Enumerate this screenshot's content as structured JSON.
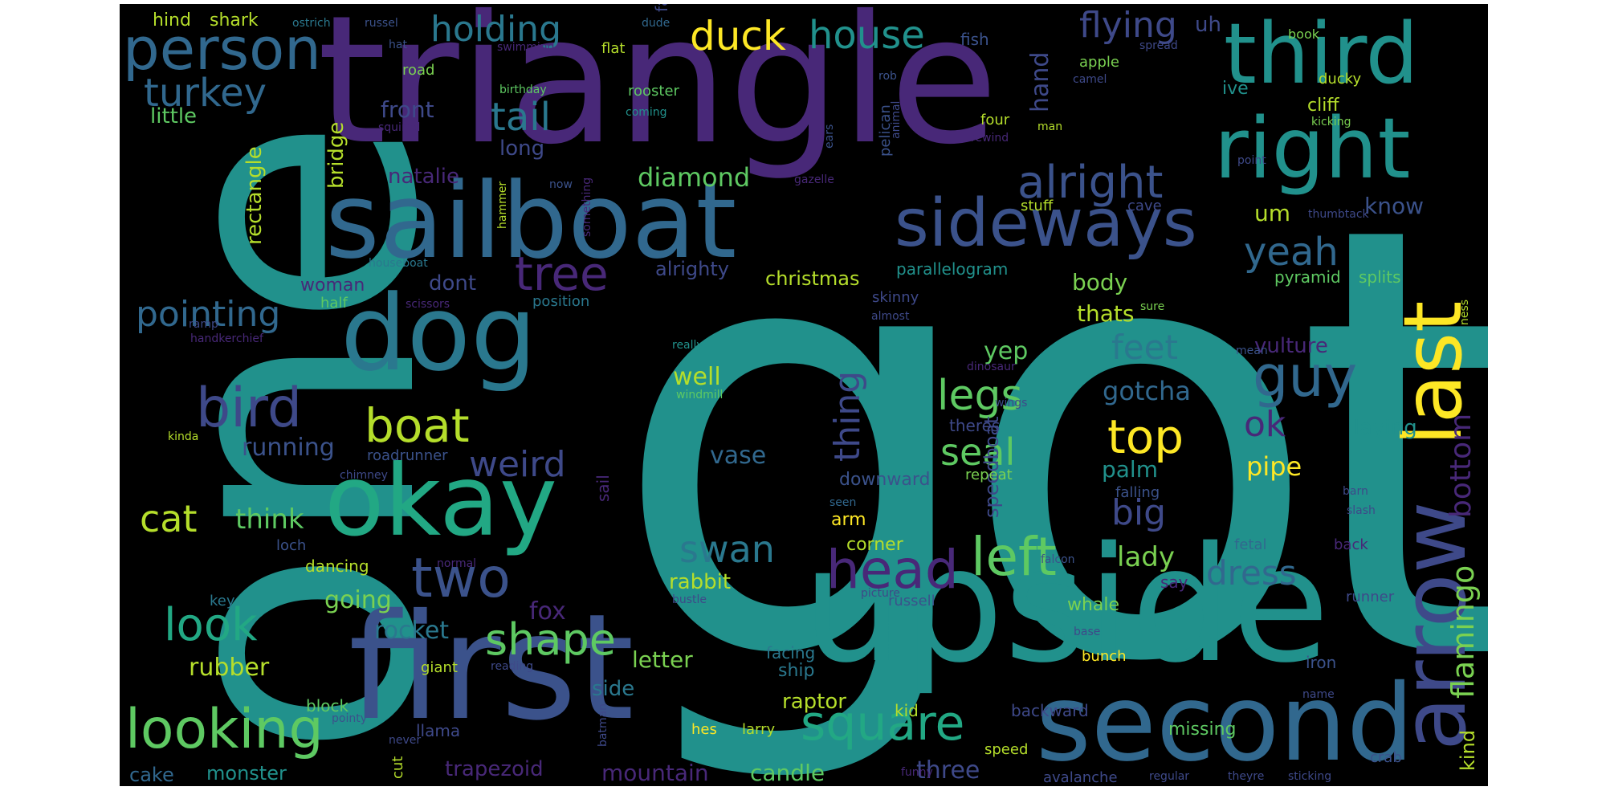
{
  "cloud": {
    "words": [
      {
        "text": "got",
        "color": "#21918c"
      },
      {
        "text": "one",
        "color": "#21918c"
      },
      {
        "text": "triangle",
        "color": "#482878"
      },
      {
        "text": "upside",
        "color": "#21918c"
      },
      {
        "text": "first",
        "color": "#3b528b"
      },
      {
        "text": "second",
        "color": "#31688e"
      },
      {
        "text": "sailboat",
        "color": "#31688e"
      },
      {
        "text": "arrow",
        "color": "#3e4989"
      },
      {
        "text": "okay",
        "color": "#22a884"
      },
      {
        "text": "dog",
        "color": "#2a788e"
      },
      {
        "text": "last",
        "color": "#fde725"
      },
      {
        "text": "third",
        "color": "#21918c"
      },
      {
        "text": "right",
        "color": "#21918c"
      },
      {
        "text": "sideways",
        "color": "#3b528b"
      },
      {
        "text": "person",
        "color": "#31688e"
      },
      {
        "text": "looking",
        "color": "#5ec962"
      },
      {
        "text": "head",
        "color": "#482878"
      },
      {
        "text": "left",
        "color": "#5ec962"
      },
      {
        "text": "square",
        "color": "#22a884"
      },
      {
        "text": "two",
        "color": "#3b528b"
      },
      {
        "text": "bird",
        "color": "#3e4989"
      },
      {
        "text": "boat",
        "color": "#b5de2b"
      },
      {
        "text": "look",
        "color": "#22a884"
      },
      {
        "text": "shape",
        "color": "#5ec962"
      },
      {
        "text": "top",
        "color": "#fde725"
      },
      {
        "text": "guy",
        "color": "#31688e"
      },
      {
        "text": "tree",
        "color": "#482878"
      },
      {
        "text": "legs",
        "color": "#5ec962"
      },
      {
        "text": "alright",
        "color": "#3b528b"
      },
      {
        "text": "yeah",
        "color": "#31688e"
      },
      {
        "text": "duck",
        "color": "#fde725"
      },
      {
        "text": "house",
        "color": "#21918c"
      },
      {
        "text": "tail",
        "color": "#2a788e"
      },
      {
        "text": "turkey",
        "color": "#31688e"
      },
      {
        "text": "holding",
        "color": "#2a788e"
      },
      {
        "text": "flying",
        "color": "#3e4989"
      },
      {
        "text": "pointing",
        "color": "#31688e"
      },
      {
        "text": "cat",
        "color": "#b5de2b"
      },
      {
        "text": "swan",
        "color": "#2a788e"
      },
      {
        "text": "seal",
        "color": "#5ec962"
      },
      {
        "text": "big",
        "color": "#3e4989"
      },
      {
        "text": "dress",
        "color": "#31688e"
      },
      {
        "text": "feet",
        "color": "#2a788e"
      },
      {
        "text": "weird",
        "color": "#3e4989"
      },
      {
        "text": "thing",
        "color": "#3e4989"
      },
      {
        "text": "ok",
        "color": "#482878"
      },
      {
        "text": "flamingo",
        "color": "#7ad151"
      },
      {
        "text": "bottom",
        "color": "#482878"
      },
      {
        "text": "kind",
        "color": "#b5de2b"
      },
      {
        "text": "diamond",
        "color": "#5ec962"
      },
      {
        "text": "running",
        "color": "#3b528b"
      },
      {
        "text": "think",
        "color": "#5ec962"
      },
      {
        "text": "gotcha",
        "color": "#31688e"
      },
      {
        "text": "lady",
        "color": "#7ad151"
      },
      {
        "text": "yep",
        "color": "#5ec962"
      },
      {
        "text": "well",
        "color": "#b5de2b"
      },
      {
        "text": "fox",
        "color": "#482878"
      },
      {
        "text": "rocket",
        "color": "#2a788e"
      },
      {
        "text": "going",
        "color": "#7ad151"
      },
      {
        "text": "rubber",
        "color": "#b5de2b"
      },
      {
        "text": "letter",
        "color": "#7ad151"
      },
      {
        "text": "side",
        "color": "#2a788e"
      },
      {
        "text": "raptor",
        "color": "#b5de2b"
      },
      {
        "text": "mountain",
        "color": "#482878"
      },
      {
        "text": "candle",
        "color": "#5ec962"
      },
      {
        "text": "three",
        "color": "#3e4989"
      },
      {
        "text": "trapezoid",
        "color": "#482878"
      },
      {
        "text": "monster",
        "color": "#21918c"
      },
      {
        "text": "cake",
        "color": "#31688e"
      },
      {
        "text": "rabbit",
        "color": "#b5de2b"
      },
      {
        "text": "vase",
        "color": "#31688e"
      },
      {
        "text": "palm",
        "color": "#21918c"
      },
      {
        "text": "pipe",
        "color": "#fde725"
      },
      {
        "text": "christmas",
        "color": "#b5de2b"
      },
      {
        "text": "parallelogram",
        "color": "#21918c"
      },
      {
        "text": "alrighty",
        "color": "#3e4989"
      },
      {
        "text": "dont",
        "color": "#3e4989"
      },
      {
        "text": "woman",
        "color": "#482878"
      },
      {
        "text": "natalie",
        "color": "#482878"
      },
      {
        "text": "front",
        "color": "#3e4989"
      },
      {
        "text": "long",
        "color": "#3e4989"
      },
      {
        "text": "bridge",
        "color": "#b5de2b"
      },
      {
        "text": "rectangle",
        "color": "#b5de2b"
      },
      {
        "text": "little",
        "color": "#5ec962"
      },
      {
        "text": "hand",
        "color": "#3e4989"
      },
      {
        "text": "um",
        "color": "#b5de2b"
      },
      {
        "text": "know",
        "color": "#3b528b"
      },
      {
        "text": "body",
        "color": "#7ad151"
      },
      {
        "text": "thats",
        "color": "#b5de2b"
      },
      {
        "text": "vulture",
        "color": "#482878"
      },
      {
        "text": "laying",
        "color": "#21918c"
      },
      {
        "text": "speedboat",
        "color": "#3e4989"
      },
      {
        "text": "downward",
        "color": "#3b528b"
      },
      {
        "text": "arm",
        "color": "#fde725"
      },
      {
        "text": "corner",
        "color": "#b5de2b"
      },
      {
        "text": "whale",
        "color": "#7ad151"
      },
      {
        "text": "ship",
        "color": "#2a788e"
      },
      {
        "text": "hind",
        "color": "#b5de2b"
      },
      {
        "text": "shark",
        "color": "#b5de2b"
      },
      {
        "text": "ostrich",
        "color": "#2a788e"
      },
      {
        "text": "russel",
        "color": "#3b528b"
      },
      {
        "text": "hat",
        "color": "#3b528b"
      },
      {
        "text": "swimming",
        "color": "#482878"
      },
      {
        "text": "fat",
        "color": "#3e4989"
      },
      {
        "text": "flat",
        "color": "#b5de2b"
      },
      {
        "text": "dude",
        "color": "#31688e"
      },
      {
        "text": "fish",
        "color": "#3b528b"
      },
      {
        "text": "road",
        "color": "#7ad151"
      },
      {
        "text": "birthday",
        "color": "#5ec962"
      },
      {
        "text": "rooster",
        "color": "#5ec962"
      },
      {
        "text": "coming",
        "color": "#21918c"
      },
      {
        "text": "squirrel",
        "color": "#482878"
      },
      {
        "text": "apple",
        "color": "#7ad151"
      },
      {
        "text": "camel",
        "color": "#3e4989"
      },
      {
        "text": "book",
        "color": "#7ad151"
      },
      {
        "text": "spread",
        "color": "#3e4989"
      },
      {
        "text": "uh",
        "color": "#3e4989"
      },
      {
        "text": "cliff",
        "color": "#b5de2b"
      },
      {
        "text": "ducky",
        "color": "#b5de2b"
      },
      {
        "text": "kicking",
        "color": "#7ad151"
      },
      {
        "text": "ive",
        "color": "#21918c"
      },
      {
        "text": "man",
        "color": "#b5de2b"
      },
      {
        "text": "rob",
        "color": "#3b528b"
      },
      {
        "text": "pelican",
        "color": "#3b528b"
      },
      {
        "text": "animal",
        "color": "#3e4989"
      },
      {
        "text": "four",
        "color": "#b5de2b"
      },
      {
        "text": "rewind",
        "color": "#482878"
      },
      {
        "text": "ears",
        "color": "#3b528b"
      },
      {
        "text": "point",
        "color": "#3e4989"
      },
      {
        "text": "gazelle",
        "color": "#482878"
      },
      {
        "text": "hammer",
        "color": "#b5de2b"
      },
      {
        "text": "now",
        "color": "#3b528b"
      },
      {
        "text": "something",
        "color": "#482878"
      },
      {
        "text": "stuff",
        "color": "#b5de2b"
      },
      {
        "text": "cave",
        "color": "#3e4989"
      },
      {
        "text": "thumbtack",
        "color": "#3e4989"
      },
      {
        "text": "pyramid",
        "color": "#5ec962"
      },
      {
        "text": "splits",
        "color": "#5ec962"
      },
      {
        "text": "sure",
        "color": "#7ad151"
      },
      {
        "text": "ness",
        "color": "#b5de2b"
      },
      {
        "text": "houseboat",
        "color": "#2a788e"
      },
      {
        "text": "position",
        "color": "#2a788e"
      },
      {
        "text": "half",
        "color": "#5ec962"
      },
      {
        "text": "scissors",
        "color": "#482878"
      },
      {
        "text": "skinny",
        "color": "#3e4989"
      },
      {
        "text": "handkerchief",
        "color": "#482878"
      },
      {
        "text": "almost",
        "color": "#3e4989"
      },
      {
        "text": "ramp",
        "color": "#3e4989"
      },
      {
        "text": "really",
        "color": "#21918c"
      },
      {
        "text": "mean",
        "color": "#3b528b"
      },
      {
        "text": "dinosaur",
        "color": "#482878"
      },
      {
        "text": "windmill",
        "color": "#5ec962"
      },
      {
        "text": "wings",
        "color": "#3e4989"
      },
      {
        "text": "theres",
        "color": "#3e4989"
      },
      {
        "text": "kinda",
        "color": "#b5de2b"
      },
      {
        "text": "roadrunner",
        "color": "#3b528b"
      },
      {
        "text": "chimney",
        "color": "#3e4989"
      },
      {
        "text": "repeat",
        "color": "#7ad151"
      },
      {
        "text": "falling",
        "color": "#3b528b"
      },
      {
        "text": "barn",
        "color": "#3e4989"
      },
      {
        "text": "sail",
        "color": "#482878"
      },
      {
        "text": "seen",
        "color": "#31688e"
      },
      {
        "text": "slash",
        "color": "#3e4989"
      },
      {
        "text": "loch",
        "color": "#3b528b"
      },
      {
        "text": "fetal",
        "color": "#31688e"
      },
      {
        "text": "back",
        "color": "#482878"
      },
      {
        "text": "falcon",
        "color": "#3b528b"
      },
      {
        "text": "dancing",
        "color": "#b5de2b"
      },
      {
        "text": "normal",
        "color": "#482878"
      },
      {
        "text": "say",
        "color": "#482878"
      },
      {
        "text": "key",
        "color": "#2a788e"
      },
      {
        "text": "bustle",
        "color": "#3e4989"
      },
      {
        "text": "russell",
        "color": "#3b528b"
      },
      {
        "text": "picture",
        "color": "#3e4989"
      },
      {
        "text": "runner",
        "color": "#3e4989"
      },
      {
        "text": "base",
        "color": "#3e4989"
      },
      {
        "text": "facing",
        "color": "#2a788e"
      },
      {
        "text": "bunch",
        "color": "#fde725"
      },
      {
        "text": "giant",
        "color": "#b5de2b"
      },
      {
        "text": "reading",
        "color": "#3e4989"
      },
      {
        "text": "iron",
        "color": "#3b528b"
      },
      {
        "text": "name",
        "color": "#3e4989"
      },
      {
        "text": "block",
        "color": "#5ec962"
      },
      {
        "text": "pointy",
        "color": "#3b528b"
      },
      {
        "text": "llama",
        "color": "#3e4989"
      },
      {
        "text": "batman",
        "color": "#3e4989"
      },
      {
        "text": "kid",
        "color": "#b5de2b"
      },
      {
        "text": "backward",
        "color": "#3e4989"
      },
      {
        "text": "missing",
        "color": "#5ec962"
      },
      {
        "text": "hes",
        "color": "#fde725"
      },
      {
        "text": "larry",
        "color": "#b5de2b"
      },
      {
        "text": "never",
        "color": "#3e4989"
      },
      {
        "text": "cut",
        "color": "#b5de2b"
      },
      {
        "text": "speed",
        "color": "#b5de2b"
      },
      {
        "text": "funny",
        "color": "#482878"
      },
      {
        "text": "avalanche",
        "color": "#3e4989"
      },
      {
        "text": "regular",
        "color": "#3e4989"
      },
      {
        "text": "theyre",
        "color": "#3e4989"
      },
      {
        "text": "sticking",
        "color": "#3e4989"
      },
      {
        "text": "crab",
        "color": "#3b528b"
      }
    ]
  }
}
